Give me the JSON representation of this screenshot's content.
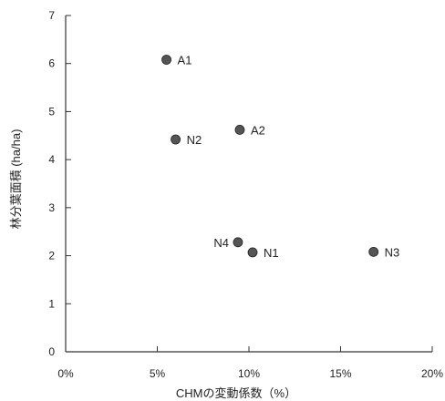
{
  "chart_data": {
    "type": "scatter",
    "xlabel": "CHMの変動係数（%）",
    "ylabel": "林分葉面積 (ha/ha)",
    "xlim": [
      0,
      20
    ],
    "ylim": [
      0,
      7
    ],
    "x_ticks": [
      0,
      5,
      10,
      15,
      20
    ],
    "x_tick_labels": [
      "0%",
      "5%",
      "10%",
      "15%",
      "20%"
    ],
    "y_ticks": [
      0,
      1,
      2,
      3,
      4,
      5,
      6,
      7
    ],
    "y_tick_labels": [
      "0",
      "1",
      "2",
      "3",
      "4",
      "5",
      "6",
      "7"
    ],
    "grid": false,
    "legend": "none",
    "marker_color": "#555555",
    "points": [
      {
        "label": "A1",
        "x": 5.5,
        "y": 6.08
      },
      {
        "label": "A2",
        "x": 9.5,
        "y": 4.62
      },
      {
        "label": "N2",
        "x": 6.0,
        "y": 4.42
      },
      {
        "label": "N4",
        "x": 9.4,
        "y": 2.28
      },
      {
        "label": "N1",
        "x": 10.2,
        "y": 2.07
      },
      {
        "label": "N3",
        "x": 16.8,
        "y": 2.08
      }
    ]
  }
}
